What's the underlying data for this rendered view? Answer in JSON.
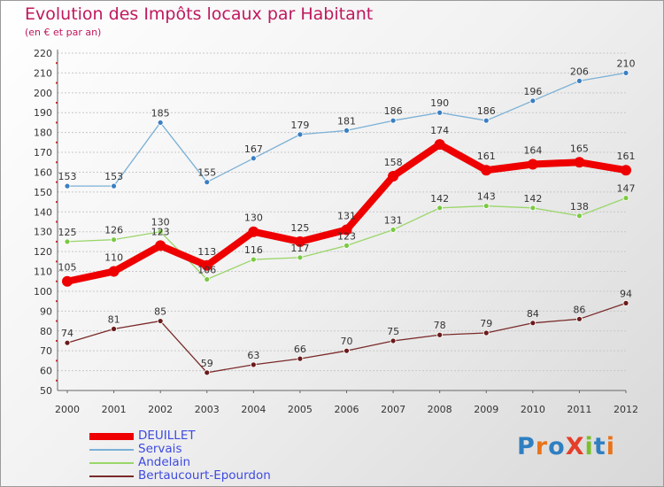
{
  "header": {
    "title": "Evolution des Impôts locaux par Habitant",
    "subtitle": "(en € et par an)"
  },
  "logo": {
    "text": "ProXiti",
    "colors": [
      "#2f7fc1",
      "#e8731a",
      "#2f7fc1",
      "#e53e2a",
      "#7bbf2a",
      "#2f7fc1",
      "#e8731a"
    ]
  },
  "chart_data": {
    "type": "line",
    "title": "Evolution des Impôts locaux par Habitant",
    "subtitle": "(en € et par an)",
    "xlabel": "",
    "ylabel": "",
    "x": [
      "2000",
      "2001",
      "2002",
      "2003",
      "2004",
      "2005",
      "2006",
      "2007",
      "2008",
      "2009",
      "2010",
      "2011",
      "2012"
    ],
    "ylim": [
      50,
      220
    ],
    "yticks": [
      50,
      60,
      70,
      80,
      90,
      100,
      110,
      120,
      130,
      140,
      150,
      160,
      170,
      180,
      190,
      200,
      210,
      220
    ],
    "grid": "horizontal",
    "legend_position": "bottom-left",
    "series": [
      {
        "name": "DEUILLET",
        "color": "#ee0000",
        "width": 8,
        "marker": 6,
        "values": [
          105,
          110,
          123,
          113,
          130,
          125,
          131,
          158,
          174,
          161,
          164,
          165,
          161
        ]
      },
      {
        "name": "Servais",
        "color": "#7ab0d6",
        "marker_color": "#3a7fc1",
        "width": 1.3,
        "marker": 3,
        "values": [
          153,
          153,
          185,
          155,
          167,
          179,
          181,
          186,
          190,
          186,
          196,
          206,
          210
        ]
      },
      {
        "name": "Andelain",
        "color": "#9ad66a",
        "marker_color": "#7ac943",
        "width": 1.3,
        "marker": 3,
        "values": [
          125,
          126,
          130,
          106,
          116,
          117,
          123,
          131,
          142,
          143,
          142,
          138,
          147
        ]
      },
      {
        "name": "Bertaucourt-Epourdon",
        "color": "#7a2a2a",
        "marker_color": "#6b1a1a",
        "width": 1.3,
        "marker": 3,
        "values": [
          74,
          81,
          85,
          59,
          63,
          66,
          70,
          75,
          78,
          79,
          84,
          86,
          94
        ]
      }
    ]
  }
}
